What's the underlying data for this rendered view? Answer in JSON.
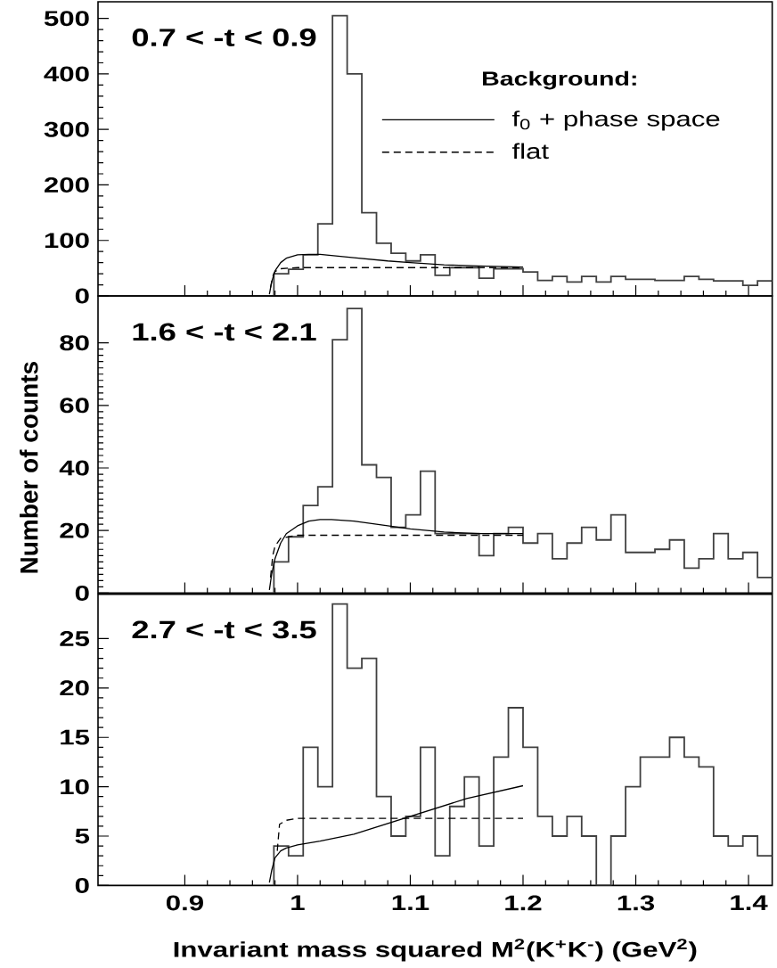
{
  "chart_data": [
    {
      "type": "histogram",
      "annotations": [
        "0.7 < -t < 0.9"
      ],
      "legend": "top right",
      "legend_title": "Background:",
      "tick_labels": "y",
      "xlim": [
        0.823,
        1.421
      ],
      "xticks": [
        0.9,
        1,
        1.1,
        1.2,
        1.3,
        1.4
      ],
      "ylim": [
        0,
        530
      ],
      "yticks": [
        0,
        100,
        200,
        300,
        400,
        500
      ],
      "color": "#404040",
      "bins": [
        0.979,
        0.992,
        1.005,
        1.018,
        1.031,
        1.044,
        1.057,
        1.07,
        1.083,
        1.096,
        1.109,
        1.122,
        1.135,
        1.148,
        1.161,
        1.174,
        1.187,
        1.2,
        1.213,
        1.226,
        1.239,
        1.252,
        1.265,
        1.278,
        1.291,
        1.304,
        1.317,
        1.33,
        1.343,
        1.356,
        1.369,
        1.382,
        1.395,
        1.408,
        1.421
      ],
      "values": [
        40,
        48,
        74,
        130,
        505,
        400,
        150,
        95,
        77,
        63,
        74,
        37,
        51,
        51,
        32,
        49,
        49,
        43,
        28,
        35,
        25,
        35,
        25,
        35,
        30,
        30,
        28,
        28,
        35,
        30,
        27,
        27,
        19,
        27
      ],
      "series": [
        {
          "type": "line",
          "name": "f$_{0}$ + phase space",
          "color": "#000000",
          "line_style": "solid",
          "x": [
            0.975,
            0.977,
            0.98,
            0.985,
            0.99,
            1.0,
            1.01,
            1.02,
            1.03,
            1.05,
            1.08,
            1.1,
            1.13,
            1.16,
            1.2
          ],
          "values": [
            3,
            25,
            45,
            60,
            68,
            74,
            75,
            75,
            73,
            69,
            63,
            60,
            56,
            54,
            52
          ]
        },
        {
          "type": "line",
          "name": "flat",
          "color": "#000000",
          "line_style": "dashed",
          "x": [
            0.976,
            0.978,
            0.98,
            0.985,
            1.0,
            1.2
          ],
          "values": [
            15,
            35,
            44,
            49,
            51,
            51
          ]
        }
      ]
    },
    {
      "type": "histogram",
      "annotations": [
        "1.6 < -t < 2.1"
      ],
      "ylabel": "Number of counts",
      "tick_labels": "y",
      "xlim": [
        0.823,
        1.421
      ],
      "xticks": [
        0.9,
        1,
        1.1,
        1.2,
        1.3,
        1.4
      ],
      "ylim": [
        0,
        95
      ],
      "yticks": [
        0,
        20,
        40,
        60,
        80
      ],
      "color": "#404040",
      "bins": [
        0.979,
        0.992,
        1.005,
        1.018,
        1.031,
        1.044,
        1.057,
        1.07,
        1.083,
        1.096,
        1.109,
        1.122,
        1.135,
        1.148,
        1.161,
        1.174,
        1.187,
        1.2,
        1.213,
        1.226,
        1.239,
        1.252,
        1.265,
        1.278,
        1.291,
        1.304,
        1.317,
        1.33,
        1.343,
        1.356,
        1.369,
        1.382,
        1.395,
        1.408,
        1.421
      ],
      "values": [
        10,
        18,
        28,
        34,
        81,
        91,
        41,
        37,
        21,
        25,
        39,
        19,
        19,
        19,
        12,
        19,
        21,
        16,
        19,
        11,
        16,
        21,
        17,
        25,
        13,
        13,
        14,
        17,
        8,
        11,
        19,
        11,
        13,
        5
      ],
      "series": [
        {
          "type": "line",
          "color": "#000000",
          "line_style": "solid",
          "x": [
            0.975,
            0.977,
            0.98,
            0.985,
            0.99,
            1.0,
            1.01,
            1.02,
            1.03,
            1.05,
            1.08,
            1.1,
            1.13,
            1.16,
            1.2
          ],
          "values": [
            1,
            6,
            11,
            16,
            19,
            21.5,
            23,
            23.5,
            23.5,
            23,
            21.5,
            20.5,
            19.5,
            19,
            19
          ]
        },
        {
          "type": "line",
          "color": "#000000",
          "line_style": "dashed",
          "x": [
            0.976,
            0.978,
            0.98,
            0.985,
            1.0,
            1.2
          ],
          "values": [
            5,
            12,
            15,
            17.5,
            18.5,
            18.5
          ]
        }
      ]
    },
    {
      "type": "histogram",
      "annotations": [
        "2.7 < -t < 3.5"
      ],
      "xlabel": "Invariant mass squared M$^{2}$(K$^{+}$K$^{-}$) (GeV$^{2}$)",
      "xlim": [
        0.823,
        1.421
      ],
      "xticks": [
        0.9,
        1,
        1.1,
        1.2,
        1.3,
        1.4
      ],
      "ylim": [
        0,
        29.5
      ],
      "yticks": [
        0,
        5,
        10,
        15,
        20,
        25
      ],
      "color": "#404040",
      "bins": [
        0.979,
        0.992,
        1.005,
        1.018,
        1.031,
        1.044,
        1.057,
        1.07,
        1.083,
        1.096,
        1.109,
        1.122,
        1.135,
        1.148,
        1.161,
        1.174,
        1.187,
        1.2,
        1.213,
        1.226,
        1.239,
        1.252,
        1.265,
        1.278,
        1.291,
        1.304,
        1.317,
        1.33,
        1.343,
        1.356,
        1.369,
        1.382,
        1.395,
        1.408,
        1.421
      ],
      "values": [
        4,
        3,
        14,
        10,
        28.5,
        22,
        23,
        9,
        5,
        7,
        14,
        3,
        8,
        11,
        4,
        13,
        18,
        14,
        7,
        5,
        7,
        5,
        0,
        5,
        10,
        13,
        13,
        15,
        13,
        12,
        5,
        4,
        5,
        3
      ],
      "series": [
        {
          "type": "line",
          "color": "#000000",
          "line_style": "solid",
          "x": [
            0.975,
            0.977,
            0.98,
            0.985,
            0.99,
            1.0,
            1.02,
            1.05,
            1.1,
            1.15,
            1.2
          ],
          "values": [
            0.3,
            1.5,
            2.8,
            3.5,
            3.8,
            4.1,
            4.5,
            5.2,
            7,
            8.8,
            10.1
          ]
        },
        {
          "type": "line",
          "color": "#000000",
          "line_style": "dashed",
          "x": [
            0.982,
            0.984,
            0.99,
            1.0,
            1.2
          ],
          "values": [
            3.5,
            6.2,
            6.6,
            6.8,
            6.8
          ]
        }
      ]
    }
  ]
}
